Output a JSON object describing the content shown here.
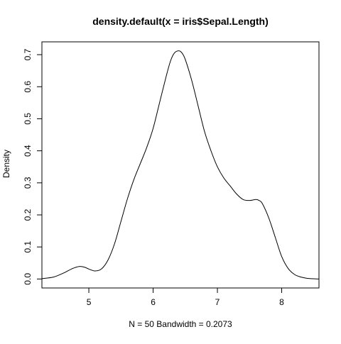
{
  "chart_data": {
    "type": "line",
    "title": "density.default(x = iris$Sepal.Length)",
    "xlabel": "N = 50   Bandwidth = 0.2073",
    "ylabel": "Density",
    "xlim": [
      4.27,
      8.58
    ],
    "ylim": [
      -0.028,
      0.74
    ],
    "x_ticks": [
      5,
      6,
      7,
      8
    ],
    "y_ticks": [
      0.0,
      0.1,
      0.2,
      0.3,
      0.4,
      0.5,
      0.6,
      0.7
    ],
    "x_tick_labels": [
      "5",
      "6",
      "7",
      "8"
    ],
    "y_tick_labels": [
      "0.0",
      "0.1",
      "0.2",
      "0.3",
      "0.4",
      "0.5",
      "0.6",
      "0.7"
    ],
    "grid": false,
    "legend": "none",
    "series": [
      {
        "color": "#000000",
        "x": [
          4.27,
          4.45,
          4.6,
          4.75,
          4.85,
          4.93,
          5.0,
          5.1,
          5.2,
          5.3,
          5.4,
          5.5,
          5.6,
          5.7,
          5.8,
          5.9,
          6.0,
          6.1,
          6.2,
          6.27,
          6.33,
          6.4,
          6.45,
          6.5,
          6.6,
          6.7,
          6.8,
          6.9,
          7.0,
          7.1,
          7.2,
          7.3,
          7.4,
          7.5,
          7.6,
          7.65,
          7.7,
          7.8,
          7.9,
          8.0,
          8.1,
          8.2,
          8.3,
          8.4,
          8.58
        ],
        "y": [
          0.001,
          0.006,
          0.018,
          0.033,
          0.039,
          0.037,
          0.031,
          0.025,
          0.032,
          0.06,
          0.11,
          0.18,
          0.25,
          0.31,
          0.36,
          0.41,
          0.47,
          0.55,
          0.63,
          0.68,
          0.705,
          0.712,
          0.705,
          0.685,
          0.62,
          0.54,
          0.46,
          0.4,
          0.35,
          0.315,
          0.29,
          0.265,
          0.248,
          0.245,
          0.248,
          0.245,
          0.235,
          0.19,
          0.13,
          0.07,
          0.033,
          0.014,
          0.006,
          0.002,
          0.0
        ]
      }
    ]
  }
}
